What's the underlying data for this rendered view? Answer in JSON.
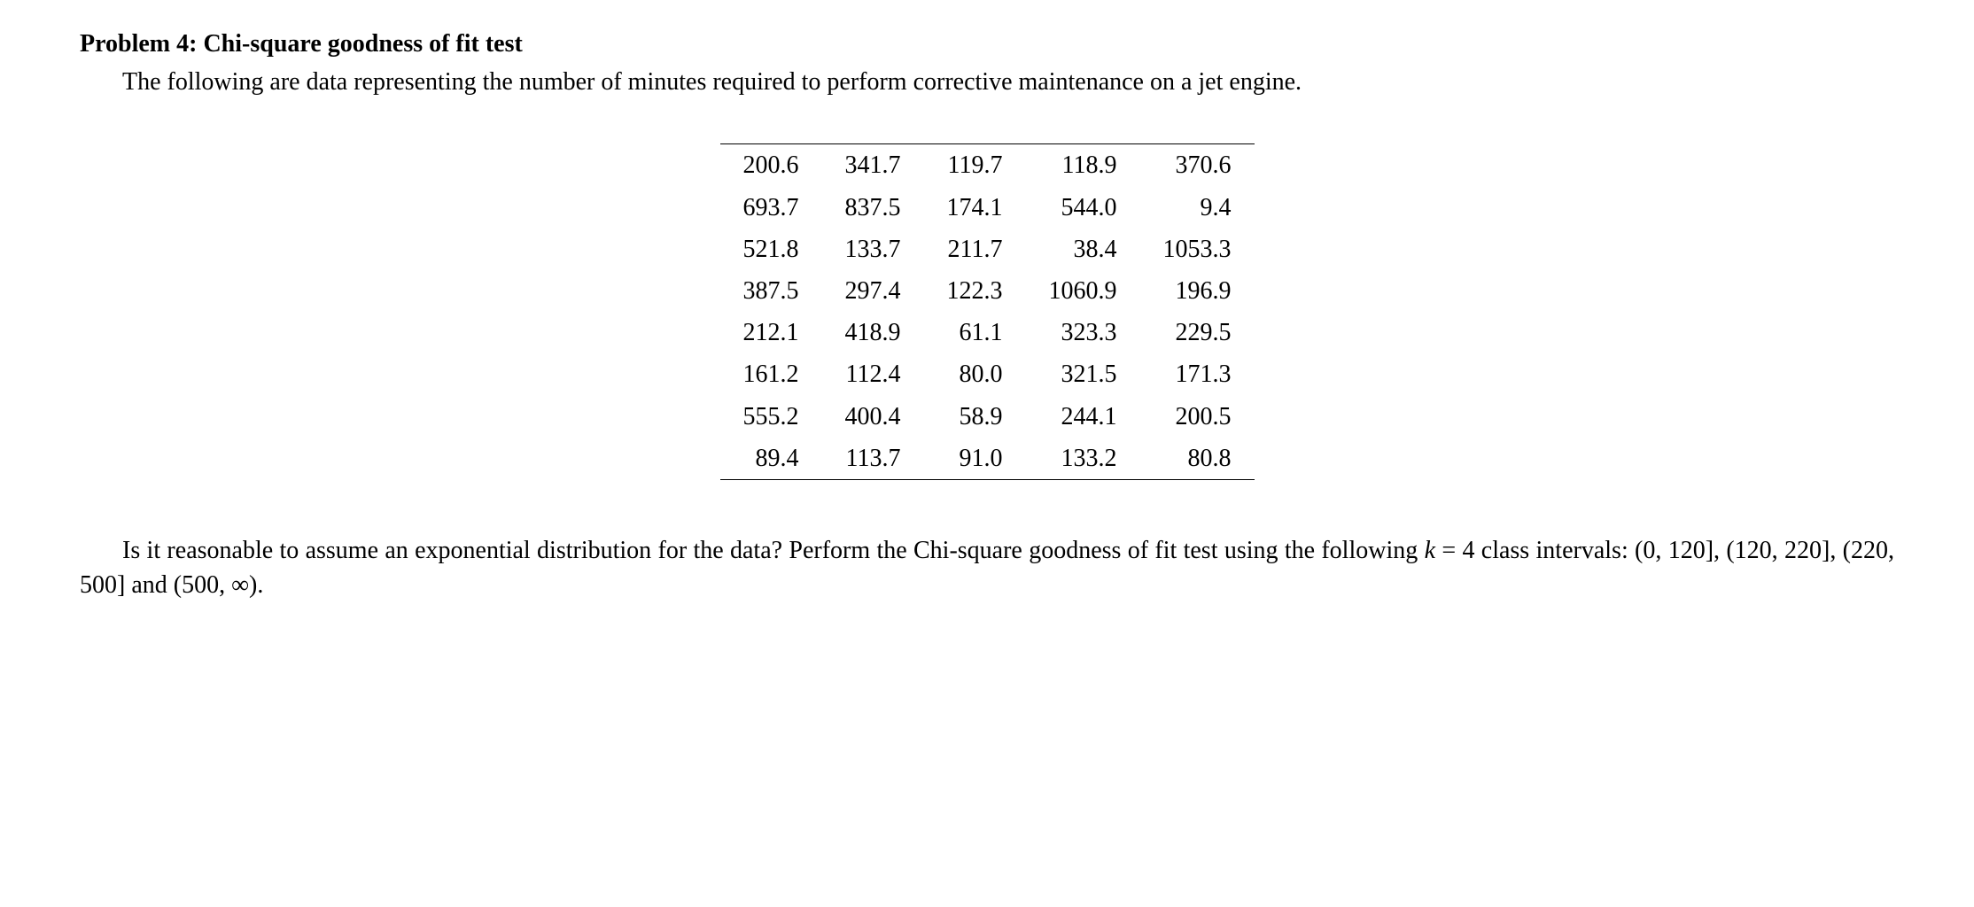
{
  "heading": {
    "label": "Problem 4:",
    "title": "Chi-square goodness of fit test"
  },
  "intro": "The following are data representing the number of minutes required to perform corrective maintenance on a jet engine.",
  "table": {
    "rows": [
      [
        "200.6",
        "341.7",
        "119.7",
        "118.9",
        "370.6"
      ],
      [
        "693.7",
        "837.5",
        "174.1",
        "544.0",
        "9.4"
      ],
      [
        "521.8",
        "133.7",
        "211.7",
        "38.4",
        "1053.3"
      ],
      [
        "387.5",
        "297.4",
        "122.3",
        "1060.9",
        "196.9"
      ],
      [
        "212.1",
        "418.9",
        "61.1",
        "323.3",
        "229.5"
      ],
      [
        "161.2",
        "112.4",
        "80.0",
        "321.5",
        "171.3"
      ],
      [
        "555.2",
        "400.4",
        "58.9",
        "244.1",
        "200.5"
      ],
      [
        "89.4",
        "113.7",
        "91.0",
        "133.2",
        "80.8"
      ]
    ],
    "num_cols": 5,
    "border_color": "#000000"
  },
  "question": {
    "part1": "Is it reasonable to assume an exponential distribution for the data? Perform the Chi-square goodness of fit test using the following ",
    "k_var": "k",
    "equals": " = 4 class intervals: (0, 120], (120, 220], (220, 500] and (500, ∞)."
  },
  "style": {
    "background_color": "#ffffff",
    "text_color": "#000000",
    "font_family": "Times New Roman",
    "body_fontsize": 28,
    "heading_weight": "bold"
  }
}
